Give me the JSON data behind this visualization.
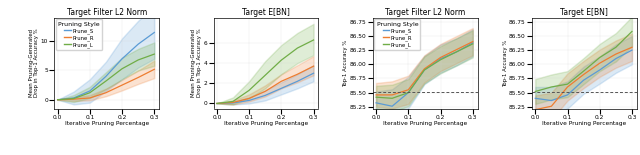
{
  "title1": "Target Filter L2 Norm",
  "title2": "Target E[BN]",
  "title3": "Target Filter L2 Norm",
  "title4": "Target E[BN]",
  "xlabel": "Iterative Pruning Percentage",
  "ylabel_left": "Mean Pruning-Generated\nDrop in Top-1 Accuracy %",
  "ylabel_right": "Top-1 Accuracy %",
  "legend_title": "Pruning Style",
  "legend_labels": [
    "Prune_S",
    "Prune_R",
    "Prune_L"
  ],
  "colors": {
    "S": "#5B9BD5",
    "R": "#ED7D31",
    "L": "#70AD47"
  },
  "x": [
    0.0,
    0.05,
    0.1,
    0.15,
    0.2,
    0.25,
    0.3
  ],
  "drop_l2_S_mean": [
    0.0,
    0.3,
    1.5,
    4.0,
    7.0,
    9.5,
    11.5
  ],
  "drop_l2_S_lo": [
    0.0,
    -0.8,
    -0.5,
    1.5,
    3.5,
    5.5,
    7.0
  ],
  "drop_l2_S_hi": [
    0.0,
    1.4,
    3.5,
    6.5,
    10.5,
    13.5,
    16.0
  ],
  "drop_l2_R_mean": [
    0.0,
    0.1,
    0.3,
    1.2,
    2.5,
    3.8,
    5.2
  ],
  "drop_l2_R_lo": [
    0.0,
    -0.2,
    -0.1,
    0.6,
    1.6,
    2.7,
    3.7
  ],
  "drop_l2_R_hi": [
    0.0,
    0.4,
    0.8,
    1.9,
    3.4,
    5.0,
    6.7
  ],
  "drop_l2_L_mean": [
    0.0,
    0.2,
    1.2,
    3.2,
    5.3,
    6.8,
    7.8
  ],
  "drop_l2_L_lo": [
    0.0,
    -0.4,
    0.3,
    1.8,
    3.5,
    5.0,
    5.8
  ],
  "drop_l2_L_hi": [
    0.0,
    0.8,
    2.2,
    4.7,
    7.2,
    8.7,
    9.8
  ],
  "drop_bn_S_mean": [
    0.0,
    0.05,
    0.3,
    0.8,
    1.5,
    2.2,
    3.0
  ],
  "drop_bn_S_lo": [
    0.0,
    -0.1,
    0.0,
    0.3,
    0.9,
    1.5,
    2.2
  ],
  "drop_bn_S_hi": [
    0.0,
    0.2,
    0.6,
    1.3,
    2.1,
    2.9,
    3.8
  ],
  "drop_bn_R_mean": [
    0.0,
    0.1,
    0.5,
    1.2,
    2.2,
    2.9,
    3.7
  ],
  "drop_bn_R_lo": [
    0.0,
    -0.1,
    0.2,
    0.7,
    1.5,
    2.1,
    2.8
  ],
  "drop_bn_R_hi": [
    0.0,
    0.3,
    0.9,
    1.8,
    2.9,
    3.8,
    4.7
  ],
  "drop_bn_L_mean": [
    0.0,
    0.2,
    1.3,
    2.8,
    4.3,
    5.5,
    6.3
  ],
  "drop_bn_L_lo": [
    0.0,
    -0.1,
    0.5,
    1.5,
    2.9,
    4.0,
    4.8
  ],
  "drop_bn_L_hi": [
    0.0,
    0.6,
    2.2,
    4.2,
    5.8,
    7.0,
    7.9
  ],
  "acc_l2_S_mean": [
    85.32,
    85.26,
    85.5,
    85.9,
    86.1,
    86.22,
    86.38
  ],
  "acc_l2_S_lo": [
    85.12,
    84.96,
    85.22,
    85.65,
    85.85,
    85.98,
    86.14
  ],
  "acc_l2_S_hi": [
    85.52,
    85.56,
    85.78,
    86.15,
    86.35,
    86.46,
    86.62
  ],
  "acc_l2_R_mean": [
    85.46,
    85.46,
    85.55,
    85.92,
    86.12,
    86.26,
    86.4
  ],
  "acc_l2_R_lo": [
    85.25,
    85.22,
    85.3,
    85.68,
    85.88,
    86.02,
    86.16
  ],
  "acc_l2_R_hi": [
    85.67,
    85.7,
    85.8,
    86.16,
    86.36,
    86.5,
    86.64
  ],
  "acc_l2_L_mean": [
    85.42,
    85.4,
    85.5,
    85.9,
    86.08,
    86.22,
    86.36
  ],
  "acc_l2_L_lo": [
    85.22,
    85.16,
    85.26,
    85.66,
    85.84,
    85.98,
    86.12
  ],
  "acc_l2_L_hi": [
    85.62,
    85.64,
    85.74,
    86.14,
    86.32,
    86.46,
    86.6
  ],
  "acc_bn_S_mean": [
    85.4,
    85.36,
    85.46,
    85.72,
    85.9,
    86.1,
    86.25
  ],
  "acc_bn_S_lo": [
    85.2,
    85.12,
    85.22,
    85.48,
    85.66,
    85.85,
    86.0
  ],
  "acc_bn_S_hi": [
    85.6,
    85.6,
    85.7,
    85.96,
    86.14,
    86.35,
    86.5
  ],
  "acc_bn_R_mean": [
    85.2,
    85.26,
    85.6,
    85.82,
    86.02,
    86.18,
    86.3
  ],
  "acc_bn_R_lo": [
    84.95,
    85.02,
    85.36,
    85.58,
    85.78,
    85.94,
    86.06
  ],
  "acc_bn_R_hi": [
    85.45,
    85.5,
    85.84,
    86.06,
    86.26,
    86.42,
    86.54
  ],
  "acc_bn_L_mean": [
    85.52,
    85.6,
    85.65,
    85.88,
    86.12,
    86.3,
    86.58
  ],
  "acc_bn_L_lo": [
    85.3,
    85.38,
    85.42,
    85.65,
    85.88,
    86.05,
    86.32
  ],
  "acc_bn_L_hi": [
    85.74,
    85.82,
    85.88,
    86.11,
    86.36,
    86.55,
    86.84
  ],
  "baseline_acc": 85.504,
  "xticks": [
    0.0,
    0.1,
    0.2,
    0.3
  ],
  "yticks_drop1": [
    0,
    5,
    10
  ],
  "yticks_drop2": [
    0,
    2,
    4,
    6
  ],
  "alpha_fill": 0.22
}
